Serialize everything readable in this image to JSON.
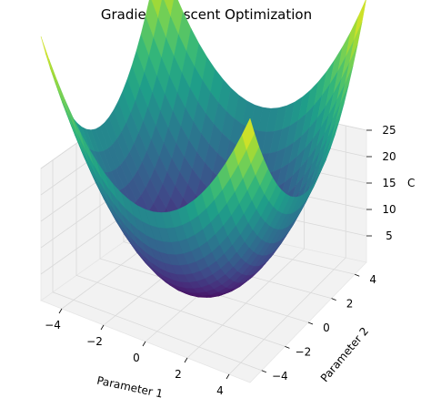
{
  "chart_data": {
    "type": "surface3d",
    "title": "Gradient Descent Optimization",
    "xlabel": "Parameter 1",
    "ylabel": "Parameter 2",
    "zlabel": "C",
    "function": "z = x^2 + y^2",
    "colormap": "viridis",
    "xlim": [
      -5,
      5
    ],
    "ylim": [
      -5,
      5
    ],
    "zlim": [
      0,
      25
    ],
    "x_ticks": [
      "−4",
      "−2",
      "0",
      "2",
      "4"
    ],
    "y_ticks": [
      "−4",
      "−2",
      "0",
      "2",
      "4"
    ],
    "z_ticks": [
      "5",
      "10",
      "15",
      "20",
      "25"
    ],
    "grid": true,
    "corner_values": [
      {
        "x": -5,
        "y": -5,
        "z": 50
      },
      {
        "x": 5,
        "y": -5,
        "z": 50
      },
      {
        "x": -5,
        "y": 5,
        "z": 50
      },
      {
        "x": 5,
        "y": 5,
        "z": 50
      }
    ],
    "minimum": {
      "x": 0,
      "y": 0,
      "z": 0
    }
  }
}
